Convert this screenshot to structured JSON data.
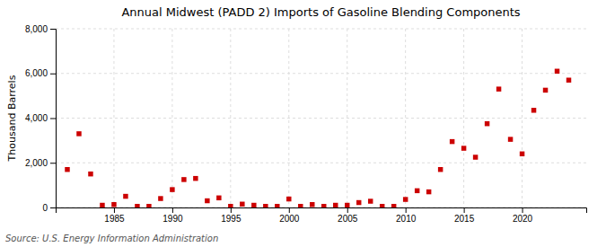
{
  "chart_data": {
    "type": "scatter",
    "title": "Annual Midwest (PADD 2) Imports of Gasoline Blending Components",
    "ylabel": "Thousand Barrels",
    "annotations": [
      "Source: U.S. Energy Information Administration"
    ],
    "x": [
      1981,
      1982,
      1983,
      1984,
      1985,
      1986,
      1987,
      1988,
      1989,
      1990,
      1991,
      1992,
      1993,
      1994,
      1995,
      1996,
      1997,
      1998,
      1999,
      2000,
      2001,
      2002,
      2003,
      2004,
      2005,
      2006,
      2007,
      2008,
      2009,
      2010,
      2011,
      2012,
      2013,
      2014,
      2015,
      2016,
      2017,
      2018,
      2019,
      2020,
      2021,
      2022,
      2023,
      2024
    ],
    "values": [
      1700,
      3300,
      1500,
      100,
      130,
      500,
      50,
      50,
      400,
      800,
      1250,
      1300,
      300,
      430,
      50,
      150,
      100,
      50,
      50,
      380,
      50,
      130,
      50,
      100,
      100,
      220,
      280,
      50,
      50,
      360,
      750,
      700,
      1700,
      2950,
      2650,
      2250,
      3750,
      5300,
      3050,
      2400,
      4350,
      5250,
      6100,
      5700
    ],
    "color": "#cc0000",
    "marker": "square",
    "xlim": [
      1980,
      2025.5
    ],
    "xticks": [
      1985,
      1990,
      1995,
      2000,
      2005,
      2010,
      2015,
      2020
    ],
    "ylim": [
      0,
      8000
    ],
    "yticks": [
      0,
      {
        "value": 2000,
        "label": "2,000"
      },
      {
        "value": 4000,
        "label": "4,000"
      },
      {
        "value": 6000,
        "label": "6,000"
      },
      {
        "value": 8000,
        "label": "8,000"
      }
    ],
    "grid": true
  }
}
